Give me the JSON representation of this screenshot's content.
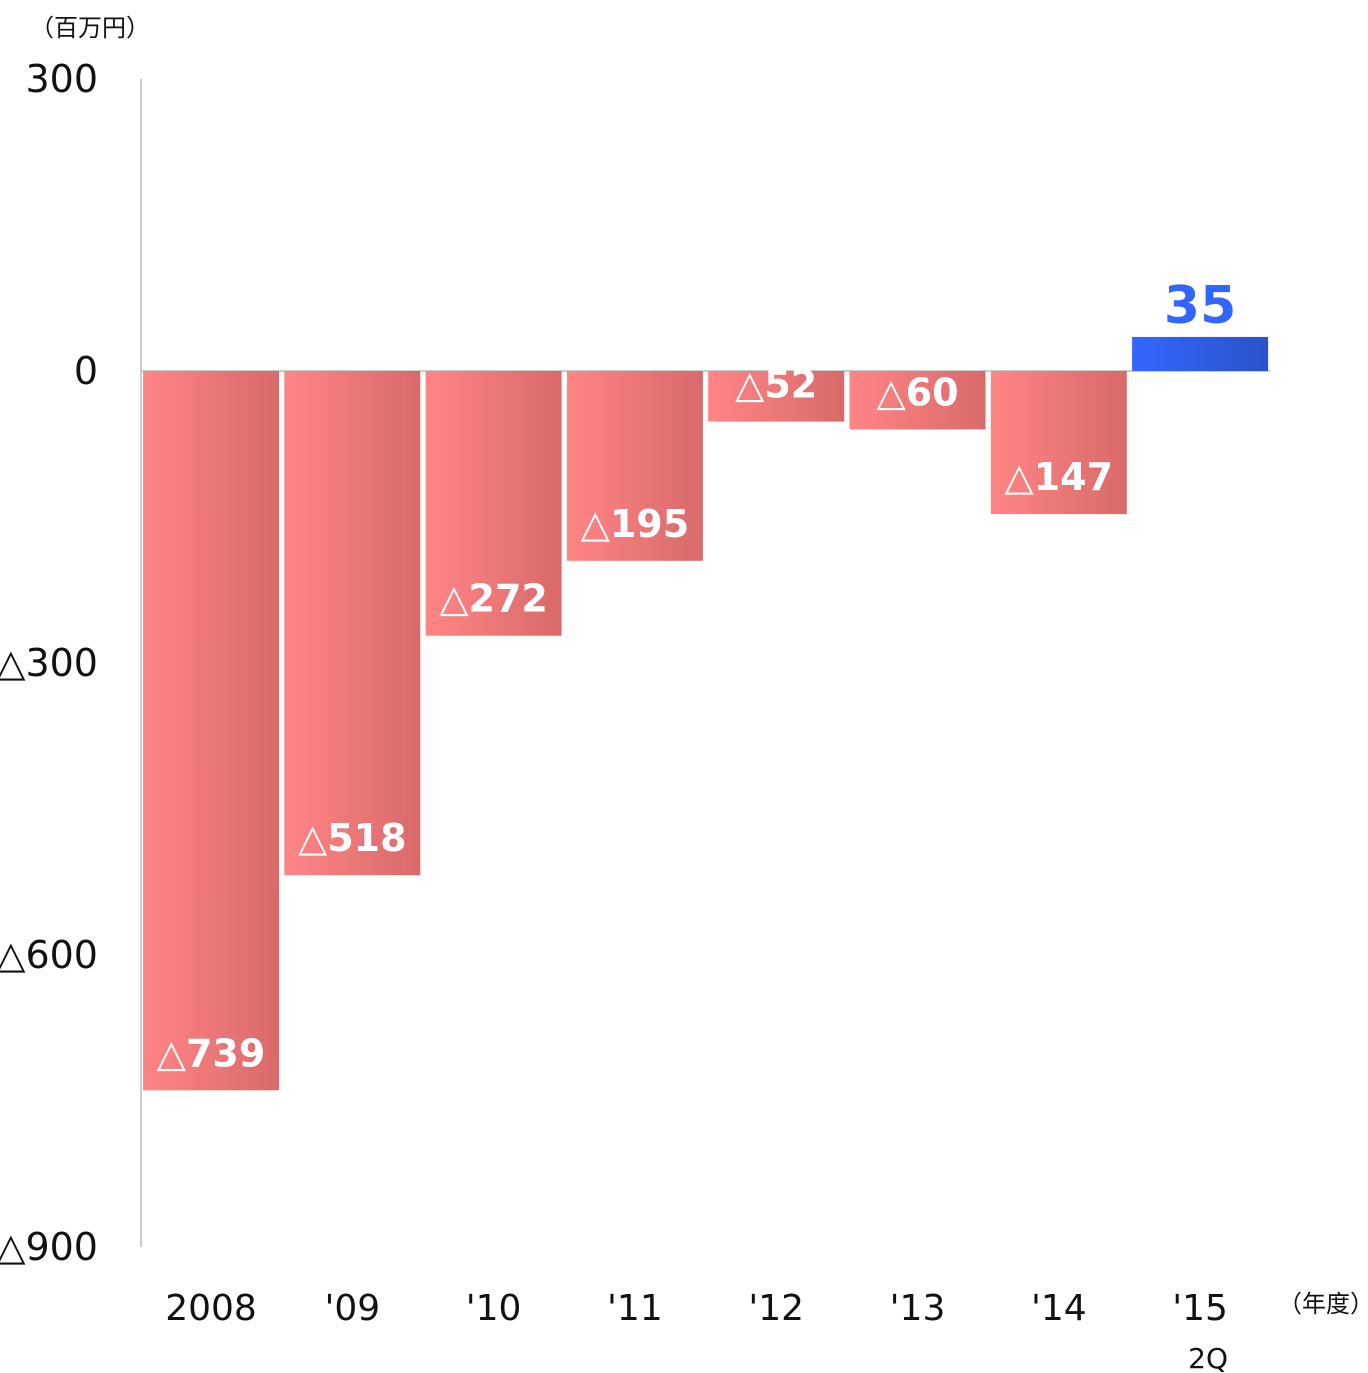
{
  "chart_data": {
    "type": "bar",
    "unit_label": "（百万円）",
    "x_unit_label": "（年度）",
    "categories": [
      "2008",
      "'09",
      "'10",
      "'11",
      "'12",
      "'13",
      "'14",
      "'15"
    ],
    "category_sublabels": [
      "",
      "",
      "",
      "",
      "",
      "",
      "",
      "2Q"
    ],
    "values": [
      -739,
      -518,
      -272,
      -195,
      -52,
      -60,
      -147,
      35
    ],
    "value_labels": [
      "△739",
      "△518",
      "△272",
      "△195",
      "△52",
      "△60",
      "△147",
      "35"
    ],
    "ylim": [
      -900,
      300
    ],
    "yticks": [
      300,
      0,
      -300,
      -600,
      -900
    ],
    "ytick_labels": [
      "300",
      "0",
      "△300",
      "△600",
      "△900"
    ],
    "grid": false,
    "colors": {
      "negative_light": "#ff8585",
      "negative_dark": "#d96a6a",
      "positive_light": "#3366ff",
      "positive_dark": "#2a52c9",
      "positive_label": "#3366ff",
      "axis": "#bbbbbb"
    }
  }
}
